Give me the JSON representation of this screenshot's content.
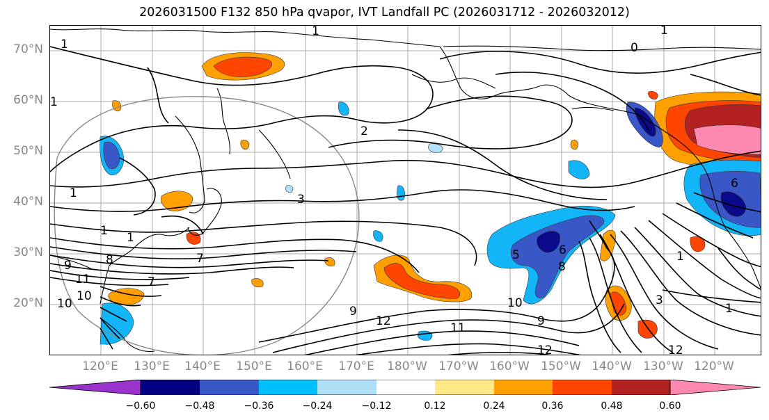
{
  "title": "2026031500 F132 850 hPa qvapor, IVT Landfall PC (2026031712 - 2026032012)",
  "map": {
    "latitude_labels": [
      "70°N",
      "60°N",
      "50°N",
      "40°N",
      "30°N",
      "20°N"
    ],
    "longitude_labels": [
      "120°E",
      "130°E",
      "140°E",
      "150°E",
      "160°E",
      "170°E",
      "180°W",
      "170°W",
      "160°W",
      "150°W",
      "140°W",
      "130°W",
      "120°W"
    ],
    "extent": {
      "lon_min": 110,
      "lon_max": 249,
      "lat_min": 10,
      "lat_max": 75
    },
    "grid": true,
    "contour_labels": [
      "1",
      "1",
      "0",
      "1",
      "1",
      "1",
      "2",
      "3",
      "1",
      "1",
      "9",
      "8",
      "7",
      "7",
      "5",
      "6",
      "8",
      "10",
      "11",
      "10",
      "9",
      "12",
      "11",
      "10",
      "9",
      "12",
      "1",
      "3",
      "1",
      "6",
      "12"
    ],
    "fill_colors": {
      "-0.60": "#0a0a8a",
      "-0.48": "#3a57c8",
      "-0.36": "#12b5f7",
      "-0.24": "#b3e0fa",
      "0.24": "#ffa000",
      "0.36": "#ff4500",
      "0.48": "#b22222",
      "0.60": "#ff8bb0"
    }
  },
  "colorbar": {
    "tick_labels": [
      "−0.60",
      "−0.48",
      "−0.36",
      "−0.24",
      "−0.12",
      "0.12",
      "0.24",
      "0.36",
      "0.48",
      "0.60"
    ],
    "colors": [
      "#9933cc",
      "#000080",
      "#3a57c8",
      "#00bfff",
      "#b0e0f8",
      "#ffffff",
      "#ffe886",
      "#ffa000",
      "#ff4500",
      "#b22222",
      "#ff88b0"
    ],
    "extend": "both"
  }
}
